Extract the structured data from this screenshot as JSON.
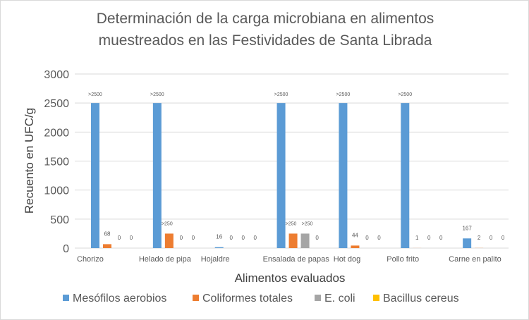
{
  "chart_data": {
    "type": "bar",
    "title": [
      "Determinación de la carga microbiana en alimentos",
      "muestreados en las Festividades de Santa Librada"
    ],
    "xlabel": "Alimentos evaluados",
    "ylabel": "Recuento en UFC/g",
    "ylim": [
      0,
      3000
    ],
    "yticks": [
      "0",
      "500",
      "1000",
      "1500",
      "2000",
      "2500",
      "3000"
    ],
    "grid": true,
    "legend_position": "bottom",
    "categories": [
      "Chorizo",
      "Helado de pipa",
      "Hojaldre",
      "Ensalada de papas",
      "Hot dog",
      "Pollo frito",
      "Carne en palito"
    ],
    "series": [
      {
        "name": "Mesófilos aerobios",
        "color": "#5B9BD5",
        "values": [
          2500,
          2500,
          16,
          2500,
          2500,
          2500,
          167
        ],
        "labels": [
          ">2500",
          ">2500",
          "16",
          ">2500",
          ">2500",
          ">2500",
          "167"
        ]
      },
      {
        "name": "Coliformes totales",
        "color": "#ED7D31",
        "values": [
          68,
          250,
          0,
          250,
          44,
          1,
          2
        ],
        "labels": [
          "68",
          ">250",
          "0",
          ">250",
          "44",
          "1",
          "2"
        ]
      },
      {
        "name": "E. coli",
        "color": "#A5A5A5",
        "values": [
          0,
          0,
          0,
          250,
          0,
          0,
          0
        ],
        "labels": [
          "0",
          "0",
          "0",
          ">250",
          "0",
          "0",
          "0"
        ]
      },
      {
        "name": "Bacillus cereus",
        "color": "#FFC000",
        "values": [
          0,
          0,
          0,
          0,
          0,
          0,
          0
        ],
        "labels": [
          "0",
          "0",
          "0",
          "0",
          "0",
          "0",
          "0"
        ]
      }
    ]
  }
}
